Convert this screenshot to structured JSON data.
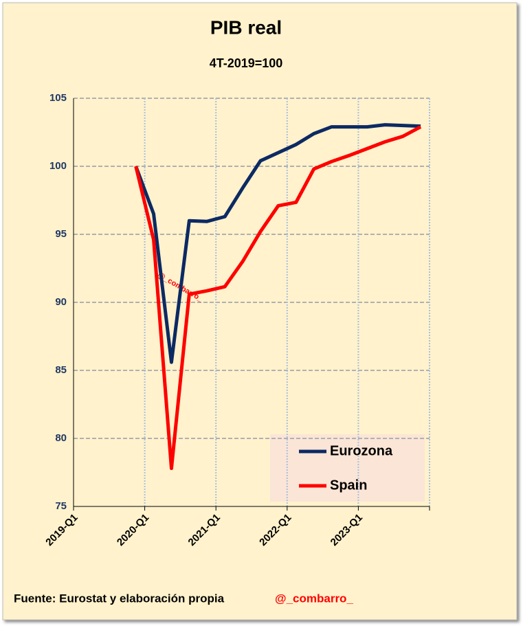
{
  "chart_data": {
    "type": "line",
    "title": "PIB real",
    "subtitle": "4T-2019=100",
    "categories": [
      "2019-Q1",
      null,
      null,
      null,
      "2020-Q1",
      null,
      null,
      null,
      "2021-Q1",
      null,
      null,
      null,
      "2022-Q1",
      null,
      null,
      null,
      "2023-Q1",
      null,
      null,
      null
    ],
    "series": [
      {
        "name": "Eurozona",
        "color": "#0c2a63",
        "values": [
          null,
          null,
          null,
          100,
          96.5,
          85.6,
          96.0,
          95.95,
          96.3,
          98.4,
          100.4,
          101.0,
          101.6,
          102.4,
          102.9,
          102.9,
          102.9,
          103.05,
          103.0,
          102.95
        ]
      },
      {
        "name": "Spain",
        "color": "#ff0000",
        "values": [
          null,
          null,
          null,
          100,
          94.6,
          77.8,
          90.6,
          90.85,
          91.15,
          93.0,
          95.2,
          97.1,
          97.35,
          99.8,
          100.35,
          100.8,
          101.3,
          101.8,
          102.2,
          102.9
        ]
      }
    ],
    "ylim": [
      75,
      105
    ],
    "yticks": [
      75,
      80,
      85,
      90,
      95,
      100,
      105
    ],
    "grid": true,
    "legend": "lower right",
    "annotations": [
      "@_combarro_"
    ],
    "source": "Fuente: Eurostat y elaboración propia",
    "credit": "@_combarro_"
  }
}
